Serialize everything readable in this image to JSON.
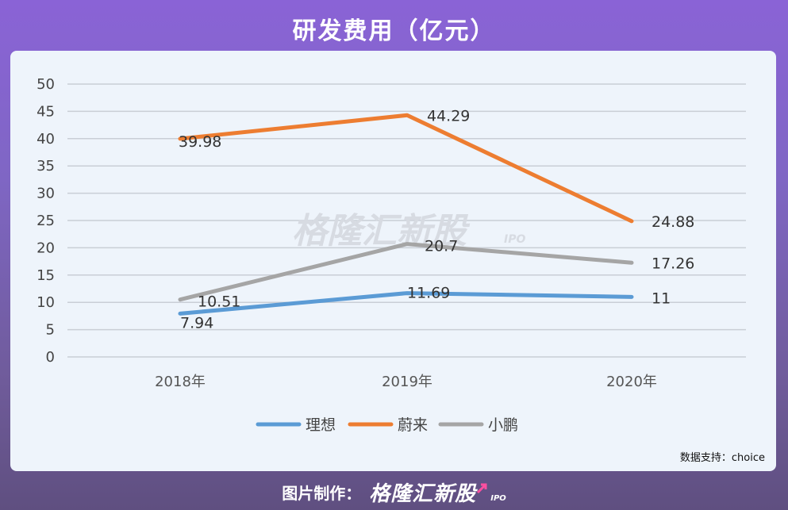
{
  "header": {
    "title": "研发费用（亿元）"
  },
  "chart_data": {
    "type": "line",
    "categories": [
      "2018年",
      "2019年",
      "2020年"
    ],
    "ylim": [
      0,
      50
    ],
    "yticks": [
      0,
      5,
      10,
      15,
      20,
      25,
      30,
      35,
      40,
      45,
      50
    ],
    "grid": true,
    "legend_position": "bottom",
    "series": [
      {
        "name": "理想",
        "values": [
          7.94,
          11.69,
          11
        ],
        "labels": [
          "7.94",
          "11.69",
          "11"
        ],
        "color": "#5b9bd5"
      },
      {
        "name": "蔚来",
        "values": [
          39.98,
          44.29,
          24.88
        ],
        "labels": [
          "39.98",
          "44.29",
          "24.88"
        ],
        "color": "#ed7d31"
      },
      {
        "name": "小鹏",
        "values": [
          10.51,
          20.7,
          17.26
        ],
        "labels": [
          "10.51",
          "20.7",
          "17.26"
        ],
        "color": "#a5a5a5"
      }
    ],
    "source": "数据支持：choice"
  },
  "watermark": {
    "text": "格隆汇新股",
    "sub": "IPO"
  },
  "footer": {
    "made_by": "图片制作：",
    "brand": "格隆汇新股",
    "sub": "IPO"
  }
}
